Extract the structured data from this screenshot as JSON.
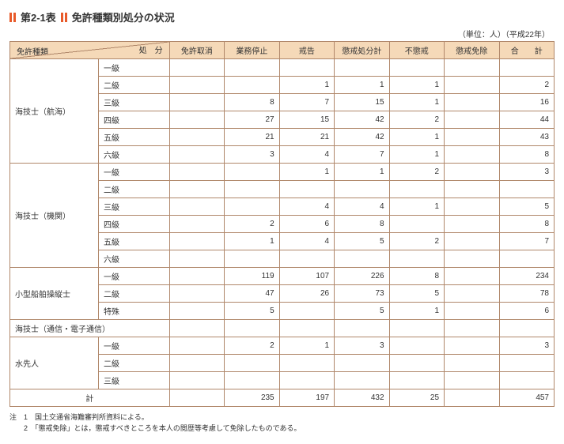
{
  "title": "第2-1表",
  "subtitle": "免許種類別処分の状況",
  "unit": "（単位：人）（平成22年）",
  "diag_tr": "処　分",
  "diag_bl": "免許種類",
  "cols": [
    "免許取消",
    "業務停止",
    "戒告",
    "懲戒処分計",
    "不懲戒",
    "懲戒免除",
    "合　　計"
  ],
  "groups": [
    {
      "name": "海技士（航海）",
      "rows": [
        {
          "lv": "一級",
          "v": [
            "",
            "",
            "",
            "",
            "",
            "",
            ""
          ]
        },
        {
          "lv": "二級",
          "v": [
            "",
            "",
            "1",
            "1",
            "1",
            "",
            "2"
          ]
        },
        {
          "lv": "三級",
          "v": [
            "",
            "8",
            "7",
            "15",
            "1",
            "",
            "16"
          ]
        },
        {
          "lv": "四級",
          "v": [
            "",
            "27",
            "15",
            "42",
            "2",
            "",
            "44"
          ]
        },
        {
          "lv": "五級",
          "v": [
            "",
            "21",
            "21",
            "42",
            "1",
            "",
            "43"
          ]
        },
        {
          "lv": "六級",
          "v": [
            "",
            "3",
            "4",
            "7",
            "1",
            "",
            "8"
          ]
        }
      ]
    },
    {
      "name": "海技士（機関）",
      "rows": [
        {
          "lv": "一級",
          "v": [
            "",
            "",
            "1",
            "1",
            "2",
            "",
            "3"
          ]
        },
        {
          "lv": "二級",
          "v": [
            "",
            "",
            "",
            "",
            "",
            "",
            ""
          ]
        },
        {
          "lv": "三級",
          "v": [
            "",
            "",
            "4",
            "4",
            "1",
            "",
            "5"
          ]
        },
        {
          "lv": "四級",
          "v": [
            "",
            "2",
            "6",
            "8",
            "",
            "",
            "8"
          ]
        },
        {
          "lv": "五級",
          "v": [
            "",
            "1",
            "4",
            "5",
            "2",
            "",
            "7"
          ]
        },
        {
          "lv": "六級",
          "v": [
            "",
            "",
            "",
            "",
            "",
            "",
            ""
          ]
        }
      ]
    },
    {
      "name": "小型船舶操縦士",
      "rows": [
        {
          "lv": "一級",
          "v": [
            "",
            "119",
            "107",
            "226",
            "8",
            "",
            "234"
          ]
        },
        {
          "lv": "二級",
          "v": [
            "",
            "47",
            "26",
            "73",
            "5",
            "",
            "78"
          ]
        },
        {
          "lv": "特殊",
          "v": [
            "",
            "5",
            "",
            "5",
            "1",
            "",
            "6"
          ]
        }
      ]
    },
    {
      "name": "海技士（通信・電子通信）",
      "span": true,
      "rows": [
        {
          "lv": "",
          "v": [
            "",
            "",
            "",
            "",
            "",
            "",
            ""
          ]
        }
      ]
    },
    {
      "name": "水先人",
      "rows": [
        {
          "lv": "一級",
          "v": [
            "",
            "2",
            "1",
            "3",
            "",
            "",
            "3"
          ]
        },
        {
          "lv": "二級",
          "v": [
            "",
            "",
            "",
            "",
            "",
            "",
            ""
          ]
        },
        {
          "lv": "三級",
          "v": [
            "",
            "",
            "",
            "",
            "",
            "",
            ""
          ]
        }
      ]
    }
  ],
  "total": {
    "label": "計",
    "v": [
      "",
      "235",
      "197",
      "432",
      "25",
      "",
      "457"
    ]
  },
  "note1": "注　1　国土交通省海難審判所資料による。",
  "note2": "　　2　「懲戒免除」とは，懲戒すべきところを本人の閲歴等考慮して免除したものである。",
  "colors": {
    "header_bg": "#f5d9b8",
    "border": "#b0876a",
    "accent": "#e85a2a"
  }
}
